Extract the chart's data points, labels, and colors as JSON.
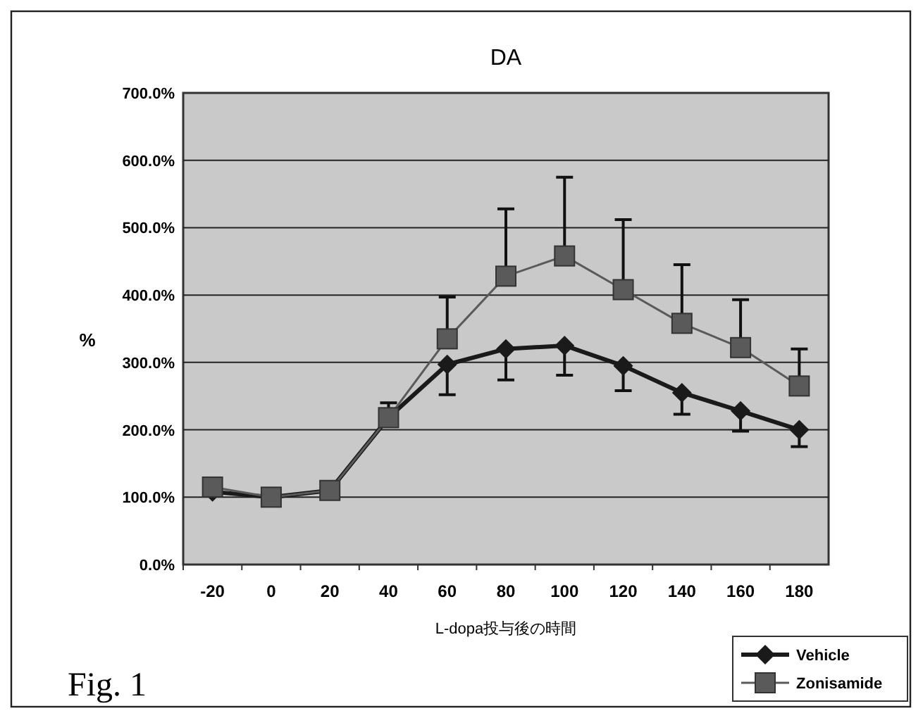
{
  "chart_data": {
    "type": "line",
    "title": "DA",
    "xlabel": "L-dopa投与後の時間",
    "ylabel": "%",
    "categories": [
      "-20",
      "0",
      "20",
      "40",
      "60",
      "80",
      "100",
      "120",
      "140",
      "160",
      "180"
    ],
    "series": [
      {
        "name": "Vehicle",
        "color": "#1a1a1a",
        "marker": "diamond",
        "values": [
          108,
          100,
          110,
          218,
          297,
          320,
          325,
          295,
          255,
          228,
          200
        ],
        "errors": [
          null,
          null,
          null,
          null,
          [
            252,
            297
          ],
          [
            274,
            320
          ],
          [
            281,
            325
          ],
          [
            258,
            295
          ],
          [
            223,
            255
          ],
          [
            198,
            228
          ],
          [
            175,
            200
          ]
        ]
      },
      {
        "name": "Zonisamide",
        "color": "#5a5a5a",
        "marker": "square",
        "values": [
          115,
          100,
          110,
          218,
          335,
          428,
          458,
          408,
          358,
          322,
          265
        ],
        "errors": [
          null,
          null,
          null,
          [
            218,
            240
          ],
          [
            335,
            397
          ],
          [
            428,
            528
          ],
          [
            458,
            575
          ],
          [
            408,
            512
          ],
          [
            358,
            445
          ],
          [
            322,
            393
          ],
          [
            265,
            320
          ]
        ]
      }
    ],
    "ylim": [
      0,
      700
    ],
    "yticks": [
      {
        "value": 0,
        "label": "0.0%"
      },
      {
        "value": 100,
        "label": "100.0%"
      },
      {
        "value": 200,
        "label": "200.0%"
      },
      {
        "value": 300,
        "label": "300.0%"
      },
      {
        "value": 400,
        "label": "400.0%"
      },
      {
        "value": 500,
        "label": "500.0%"
      },
      {
        "value": 600,
        "label": "600.0%"
      },
      {
        "value": 700,
        "label": "700.0%"
      }
    ],
    "grid": "y",
    "legend": "bottom right",
    "annotations": [
      "Fig. 1"
    ]
  }
}
